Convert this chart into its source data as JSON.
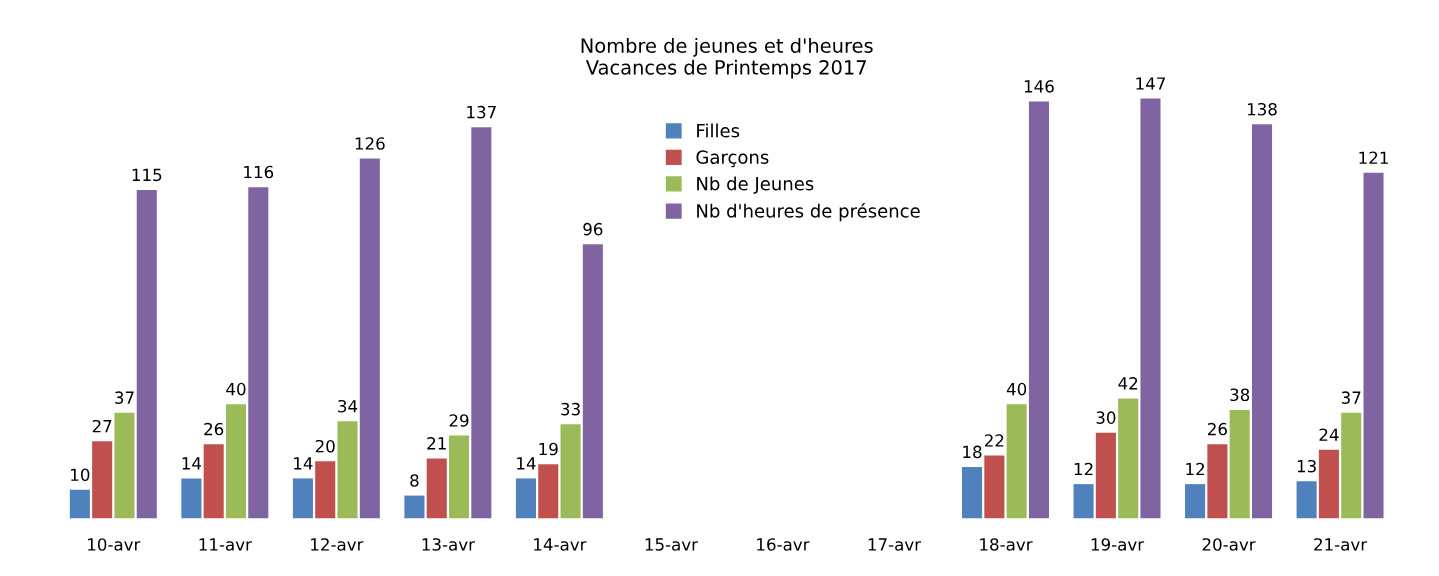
{
  "chart_data": {
    "type": "bar",
    "title": "Nombre de jeunes et d'heures\nVacances de Printemps 2017",
    "categories": [
      "10-avr",
      "11-avr",
      "12-avr",
      "13-avr",
      "14-avr",
      "15-avr",
      "16-avr",
      "17-avr",
      "18-avr",
      "19-avr",
      "20-avr",
      "21-avr"
    ],
    "series": [
      {
        "name": "Filles",
        "color": "#4f81bd",
        "values": [
          10,
          14,
          14,
          8,
          14,
          null,
          null,
          null,
          18,
          12,
          12,
          13
        ]
      },
      {
        "name": "Garçons",
        "color": "#c0504d",
        "values": [
          27,
          26,
          20,
          21,
          19,
          null,
          null,
          null,
          22,
          30,
          26,
          24
        ]
      },
      {
        "name": "Nb de Jeunes",
        "color": "#9bbb59",
        "values": [
          37,
          40,
          34,
          29,
          33,
          null,
          null,
          null,
          40,
          42,
          38,
          37
        ]
      },
      {
        "name": "Nb d'heures de présence",
        "color": "#8064a2",
        "values": [
          115,
          116,
          126,
          137,
          96,
          null,
          null,
          null,
          146,
          147,
          138,
          121
        ]
      }
    ],
    "data_labels": true,
    "legend": "top",
    "grid": false
  }
}
